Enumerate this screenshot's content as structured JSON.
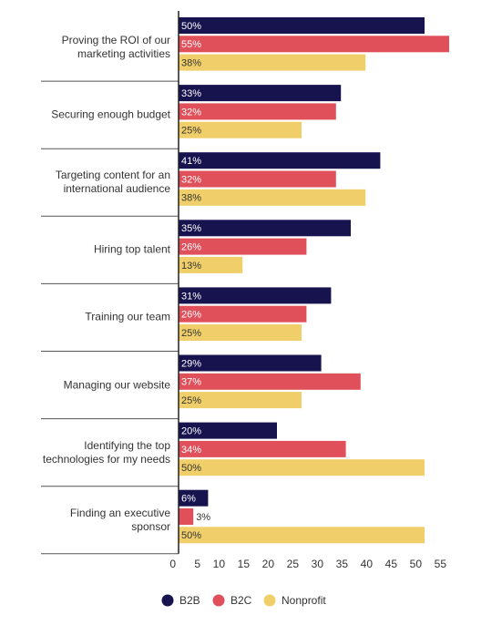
{
  "chart_data": {
    "type": "bar",
    "orientation": "horizontal",
    "categories": [
      "Proving the ROI of our\nmarketing activities",
      "Securing enough budget",
      "Targeting content for an\ninternational audience",
      "Hiring top talent",
      "Training our team",
      "Managing our website",
      "Identifying the top\ntechnologies for my needs",
      "Finding an executive\nsponsor"
    ],
    "series": [
      {
        "name": "B2B",
        "color": "#17134f",
        "label_color": "#ffffff",
        "values": [
          50,
          33,
          41,
          35,
          31,
          29,
          20,
          6
        ],
        "value_labels": [
          "50%",
          "33%",
          "41%",
          "35%",
          "31%",
          "29%",
          "20%",
          "6%"
        ]
      },
      {
        "name": "B2C",
        "color": "#e0505a",
        "label_color": "#ffffff",
        "values": [
          55,
          32,
          32,
          26,
          26,
          37,
          34,
          3
        ],
        "value_labels": [
          "55%",
          "32%",
          "32%",
          "26%",
          "26%",
          "37%",
          "34%",
          "3%"
        ]
      },
      {
        "name": "Nonprofit",
        "color": "#f0cf6a",
        "label_color": "#333333",
        "values": [
          38,
          25,
          38,
          13,
          25,
          25,
          50,
          50
        ],
        "value_labels": [
          "38%",
          "25%",
          "38%",
          "13%",
          "25%",
          "25%",
          "50%",
          "50%"
        ]
      }
    ],
    "xlim": [
      0,
      55
    ],
    "xticks": [
      0,
      5,
      10,
      15,
      20,
      25,
      30,
      35,
      40,
      45,
      50,
      55
    ]
  }
}
